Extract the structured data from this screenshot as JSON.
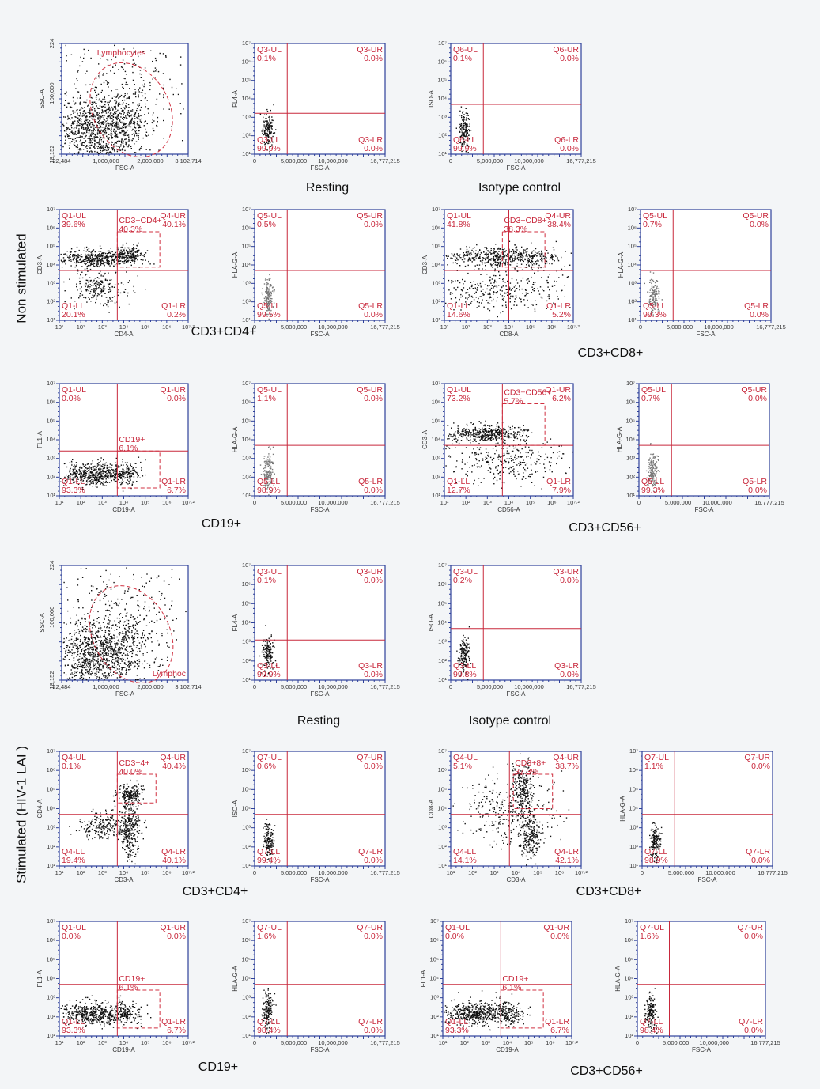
{
  "row_labels": {
    "non_stimulated": "Non stimulated",
    "stimulated": "Stimulated (HIV-1 LAI )"
  },
  "captions": [
    "Resting",
    "Isotype control",
    "CD3+CD4+",
    "CD3+CD8+",
    "CD19+",
    "CD3+CD56+",
    "Resting",
    "Isotype control",
    "CD3+CD4+",
    "CD3+CD8+",
    "CD19+",
    "CD3+CD56+"
  ],
  "scatter_x_ticks": [
    "22,484",
    "1,000,000",
    "2,000,000",
    "3,102,714"
  ],
  "scatter_y_ticks": [
    "18,152",
    "100,000",
    "224"
  ],
  "fsc_ticks": [
    "0",
    "5,000,000",
    "10,000,000",
    "16,777,215"
  ],
  "log_ticks_x": [
    "10¹",
    "10²",
    "10³",
    "10⁴",
    "10⁵",
    "10⁶",
    "10⁷·²"
  ],
  "log_ticks_y": [
    "10¹",
    "10²",
    "10³",
    "10⁴",
    "10⁵",
    "10⁶",
    "10⁷"
  ],
  "panels": [
    {
      "kind": "scatter",
      "x_label": "FSC-A",
      "y_label": "SSC-A",
      "gate": {
        "name": "Lymphocytes"
      }
    },
    {
      "kind": "fsc",
      "x_label": "FSC-A",
      "y_label": "FL4-A",
      "quadrants": [
        {
          "name": "Q3-UL",
          "pct": "0.1%"
        },
        {
          "name": "Q3-UR",
          "pct": "0.0%"
        },
        {
          "name": "Q3-LL",
          "pct": "99.9%"
        },
        {
          "name": "Q3-LR",
          "pct": "0.0%"
        }
      ]
    },
    {
      "kind": "fsc",
      "x_label": "FSC-A",
      "y_label": "ISO-A",
      "quadrants": [
        {
          "name": "Q6-UL",
          "pct": "0.1%"
        },
        {
          "name": "Q6-UR",
          "pct": "0.0%"
        },
        {
          "name": "Q6-LL",
          "pct": "99.9%"
        },
        {
          "name": "Q6-LR",
          "pct": "0.0%"
        }
      ]
    },
    {
      "kind": "log",
      "x_label": "CD4-A",
      "y_label": "CD3-A",
      "quadrants": [
        {
          "name": "Q1-UL",
          "pct": "39.6%"
        },
        {
          "name": "Q4-UR",
          "pct": "40.1%"
        },
        {
          "name": "Q1-LL",
          "pct": "20.1%"
        },
        {
          "name": "Q1-LR",
          "pct": "0.2%"
        }
      ],
      "gate": {
        "name": "CD3+CD4+",
        "pct": "40.3%"
      }
    },
    {
      "kind": "fsc",
      "x_label": "FSC-A",
      "y_label": "HLA-G-A",
      "quadrants": [
        {
          "name": "Q5-UL",
          "pct": "0.5%"
        },
        {
          "name": "Q5-UR",
          "pct": "0.0%"
        },
        {
          "name": "Q5-LL",
          "pct": "99.5%"
        },
        {
          "name": "Q5-LR",
          "pct": "0.0%"
        }
      ]
    },
    {
      "kind": "log",
      "x_label": "CD8-A",
      "y_label": "CD3-A",
      "quadrants": [
        {
          "name": "Q1-UL",
          "pct": "41.8%"
        },
        {
          "name": "Q4-UR",
          "pct": "38.4%"
        },
        {
          "name": "Q1-LL",
          "pct": "14.6%"
        },
        {
          "name": "Q1-LR",
          "pct": "5.2%"
        }
      ],
      "gate": {
        "name": "CD3+CD8+",
        "pct": "38.3%"
      }
    },
    {
      "kind": "fsc",
      "x_label": "FSC-A",
      "y_label": "HLA-G-A",
      "quadrants": [
        {
          "name": "Q5-UL",
          "pct": "0.7%"
        },
        {
          "name": "Q5-UR",
          "pct": "0.0%"
        },
        {
          "name": "Q5-LL",
          "pct": "99.3%"
        },
        {
          "name": "Q5-LR",
          "pct": "0.0%"
        }
      ]
    },
    {
      "kind": "log",
      "x_label": "CD19-A",
      "y_label": "FL1-A",
      "quadrants": [
        {
          "name": "Q1-UL",
          "pct": "0.0%"
        },
        {
          "name": "Q1-UR",
          "pct": "0.0%"
        },
        {
          "name": "Q1-LL",
          "pct": "93.3%"
        },
        {
          "name": "Q1-LR",
          "pct": "6.7%"
        }
      ],
      "gate": {
        "name": "CD19+",
        "pct": "6.1%"
      }
    },
    {
      "kind": "fsc",
      "x_label": "FSC-A",
      "y_label": "HLA-G-A",
      "quadrants": [
        {
          "name": "Q5-UL",
          "pct": "1.1%"
        },
        {
          "name": "Q5-UR",
          "pct": "0.0%"
        },
        {
          "name": "Q5-LL",
          "pct": "98.9%"
        },
        {
          "name": "Q5-LR",
          "pct": "0.0%"
        }
      ]
    },
    {
      "kind": "log",
      "x_label": "CD56-A",
      "y_label": "CD3-A",
      "quadrants": [
        {
          "name": "Q1-UL",
          "pct": "73.2%"
        },
        {
          "name": "Q1-UR",
          "pct": "6.2%"
        },
        {
          "name": "Q1-LL",
          "pct": "12.7%"
        },
        {
          "name": "Q1-LR",
          "pct": "7.9%"
        }
      ],
      "gate": {
        "name": "CD3+CD56+",
        "pct": "5.7%"
      }
    },
    {
      "kind": "fsc",
      "x_label": "FSC-A",
      "y_label": "HLA-G-A",
      "quadrants": [
        {
          "name": "Q5-UL",
          "pct": "0.7%"
        },
        {
          "name": "Q5-UR",
          "pct": "0.0%"
        },
        {
          "name": "Q5-LL",
          "pct": "99.3%"
        },
        {
          "name": "Q5-LR",
          "pct": "0.0%"
        }
      ]
    },
    {
      "kind": "scatter",
      "x_label": "FSC-A",
      "y_label": "SSC-A",
      "gate": {
        "name": "Lymphoc"
      }
    },
    {
      "kind": "fsc",
      "x_label": "FSC-A",
      "y_label": "FL4-A",
      "quadrants": [
        {
          "name": "Q3-UL",
          "pct": "0.1%"
        },
        {
          "name": "Q3-UR",
          "pct": "0.0%"
        },
        {
          "name": "Q3-LL",
          "pct": "99.9%"
        },
        {
          "name": "Q3-LR",
          "pct": "0.0%"
        }
      ]
    },
    {
      "kind": "fsc",
      "x_label": "FSC-A",
      "y_label": "ISO-A",
      "quadrants": [
        {
          "name": "Q3-UL",
          "pct": "0.2%"
        },
        {
          "name": "Q3-UR",
          "pct": "0.0%"
        },
        {
          "name": "Q3-LL",
          "pct": "99.8%"
        },
        {
          "name": "Q3-LR",
          "pct": "0.0%"
        }
      ]
    },
    {
      "kind": "log",
      "x_label": "CD3-A",
      "y_label": "CD4-A",
      "quadrants": [
        {
          "name": "Q4-UL",
          "pct": "0.1%"
        },
        {
          "name": "Q4-UR",
          "pct": "40.4%"
        },
        {
          "name": "Q4-LL",
          "pct": "19.4%"
        },
        {
          "name": "Q4-LR",
          "pct": "40.1%"
        }
      ],
      "gate": {
        "name": "CD3+4+",
        "pct": "40.0%"
      }
    },
    {
      "kind": "fsc",
      "x_label": "FSC-A",
      "y_label": "ISO-A",
      "quadrants": [
        {
          "name": "Q7-UL",
          "pct": "0.6%"
        },
        {
          "name": "Q7-UR",
          "pct": "0.0%"
        },
        {
          "name": "Q7-LL",
          "pct": "99.4%"
        },
        {
          "name": "Q7-LR",
          "pct": "0.0%"
        }
      ]
    },
    {
      "kind": "log",
      "x_label": "CD3-A",
      "y_label": "CD8-A",
      "quadrants": [
        {
          "name": "Q4-UL",
          "pct": "5.1%"
        },
        {
          "name": "Q4-UR",
          "pct": "38.7%"
        },
        {
          "name": "Q4-LL",
          "pct": "14.1%"
        },
        {
          "name": "Q4-LR",
          "pct": "42.1%"
        }
      ],
      "gate": {
        "name": "CD3+8+",
        "pct": "37.3%"
      }
    },
    {
      "kind": "fsc",
      "x_label": "FSC-A",
      "y_label": "HLA-G-A",
      "quadrants": [
        {
          "name": "Q7-UL",
          "pct": "1.1%"
        },
        {
          "name": "Q7-UR",
          "pct": "0.0%"
        },
        {
          "name": "Q7-LL",
          "pct": "98.9%"
        },
        {
          "name": "Q7-LR",
          "pct": "0.0%"
        }
      ]
    },
    {
      "kind": "log",
      "x_label": "CD19-A",
      "y_label": "FL1-A",
      "quadrants": [
        {
          "name": "Q1-UL",
          "pct": "0.0%"
        },
        {
          "name": "Q1-UR",
          "pct": "0.0%"
        },
        {
          "name": "Q1-LL",
          "pct": "93.3%"
        },
        {
          "name": "Q1-LR",
          "pct": "6.7%"
        }
      ],
      "gate": {
        "name": "CD19+",
        "pct": "6.1%"
      }
    },
    {
      "kind": "fsc",
      "x_label": "FSC-A",
      "y_label": "HLA-G-A",
      "quadrants": [
        {
          "name": "Q7-UL",
          "pct": "1.6%"
        },
        {
          "name": "Q7-UR",
          "pct": "0.0%"
        },
        {
          "name": "Q7-LL",
          "pct": "98.4%"
        },
        {
          "name": "Q7-LR",
          "pct": "0.0%"
        }
      ]
    },
    {
      "kind": "log",
      "x_label": "CD19-A",
      "y_label": "FL1-A",
      "quadrants": [
        {
          "name": "Q1-UL",
          "pct": "0.0%"
        },
        {
          "name": "Q1-UR",
          "pct": "0.0%"
        },
        {
          "name": "Q1-LL",
          "pct": "93.3%"
        },
        {
          "name": "Q1-LR",
          "pct": "6.7%"
        }
      ],
      "gate": {
        "name": "CD19+",
        "pct": "6.1%"
      }
    },
    {
      "kind": "fsc",
      "x_label": "FSC-A",
      "y_label": "HLA-G-A",
      "quadrants": [
        {
          "name": "Q7-UL",
          "pct": "1.6%"
        },
        {
          "name": "Q7-UR",
          "pct": "0.0%"
        },
        {
          "name": "Q7-LL",
          "pct": "98.4%"
        },
        {
          "name": "Q7-LR",
          "pct": "0.0%"
        }
      ]
    }
  ]
}
